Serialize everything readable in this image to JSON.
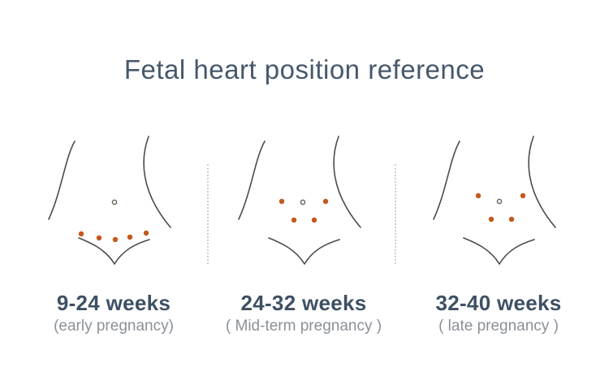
{
  "title": "Fetal heart position reference",
  "colors": {
    "heading": "#46586b",
    "weeks_label": "#3e5063",
    "phase_label": "#8b9198",
    "heart_dot": "#c4591c",
    "torso_line": "#4f4a46",
    "navel_ring": "#70685f",
    "divider": "#cbced1",
    "background": "#ffffff"
  },
  "figures": [
    {
      "weeks": "9-24 weeks",
      "phase": "(early pregnancy)",
      "navel": [
        101,
        89
      ],
      "dots": [
        [
          60,
          128
        ],
        [
          82,
          133
        ],
        [
          102,
          135
        ],
        [
          120,
          132
        ],
        [
          140,
          127
        ]
      ]
    },
    {
      "weeks": "24-32 weeks",
      "phase": "( Mid-term pregnancy )",
      "navel": [
        99,
        89
      ],
      "dots": [
        [
          73,
          88
        ],
        [
          127,
          88
        ],
        [
          88,
          111
        ],
        [
          113,
          111
        ]
      ]
    },
    {
      "weeks": "32-40 weeks",
      "phase": "( late pregnancy )",
      "navel": [
        101,
        88
      ],
      "dots": [
        [
          75,
          81
        ],
        [
          130,
          81
        ],
        [
          91,
          110
        ],
        [
          116,
          110
        ]
      ]
    }
  ]
}
